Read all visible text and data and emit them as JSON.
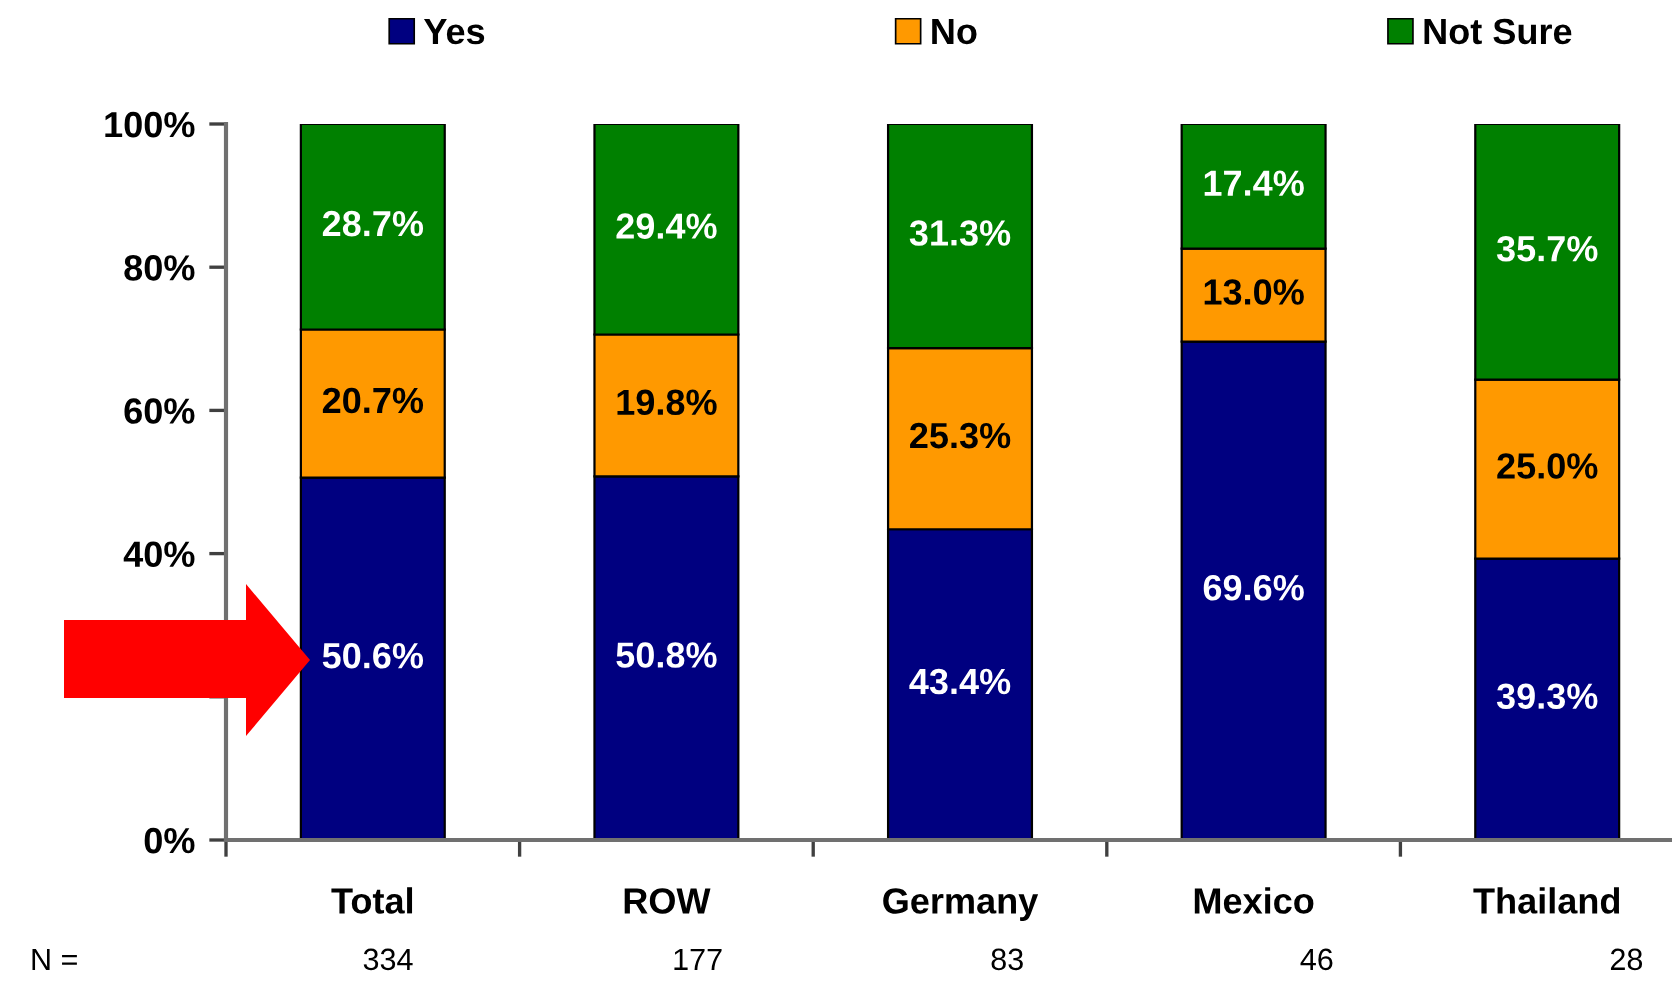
{
  "chart_data": {
    "type": "bar",
    "stacked": true,
    "categories": [
      "Total",
      "ROW",
      "Germany",
      "Mexico",
      "Thailand"
    ],
    "series": [
      {
        "name": "Yes",
        "color": "#000080",
        "values": [
          50.6,
          50.8,
          43.4,
          69.6,
          39.3
        ],
        "value_labels": [
          "50.6%",
          "50.8%",
          "43.4%",
          "69.6%",
          "39.3%"
        ]
      },
      {
        "name": "No",
        "color": "#ff9900",
        "values": [
          20.7,
          19.8,
          25.3,
          13.0,
          25.0
        ],
        "value_labels": [
          "20.7%",
          "19.8%",
          "25.3%",
          "13.0%",
          "25.0%"
        ]
      },
      {
        "name": "Not Sure",
        "color": "#008000",
        "values": [
          28.7,
          29.4,
          31.3,
          17.4,
          35.7
        ],
        "value_labels": [
          "28.7%",
          "29.4%",
          "31.3%",
          "17.4%",
          "35.7%"
        ]
      }
    ],
    "ylim": [
      0,
      100
    ],
    "yticks": [
      {
        "value": 0,
        "label": "0%"
      },
      {
        "value": 20,
        "label": null
      },
      {
        "value": 40,
        "label": "40%"
      },
      {
        "value": 60,
        "label": "60%"
      },
      {
        "value": 80,
        "label": "80%"
      },
      {
        "value": 100,
        "label": "100%"
      }
    ],
    "grid": false,
    "legend": "top",
    "annotations": [
      "N =",
      "334",
      "177",
      "83",
      "46",
      "28"
    ]
  }
}
